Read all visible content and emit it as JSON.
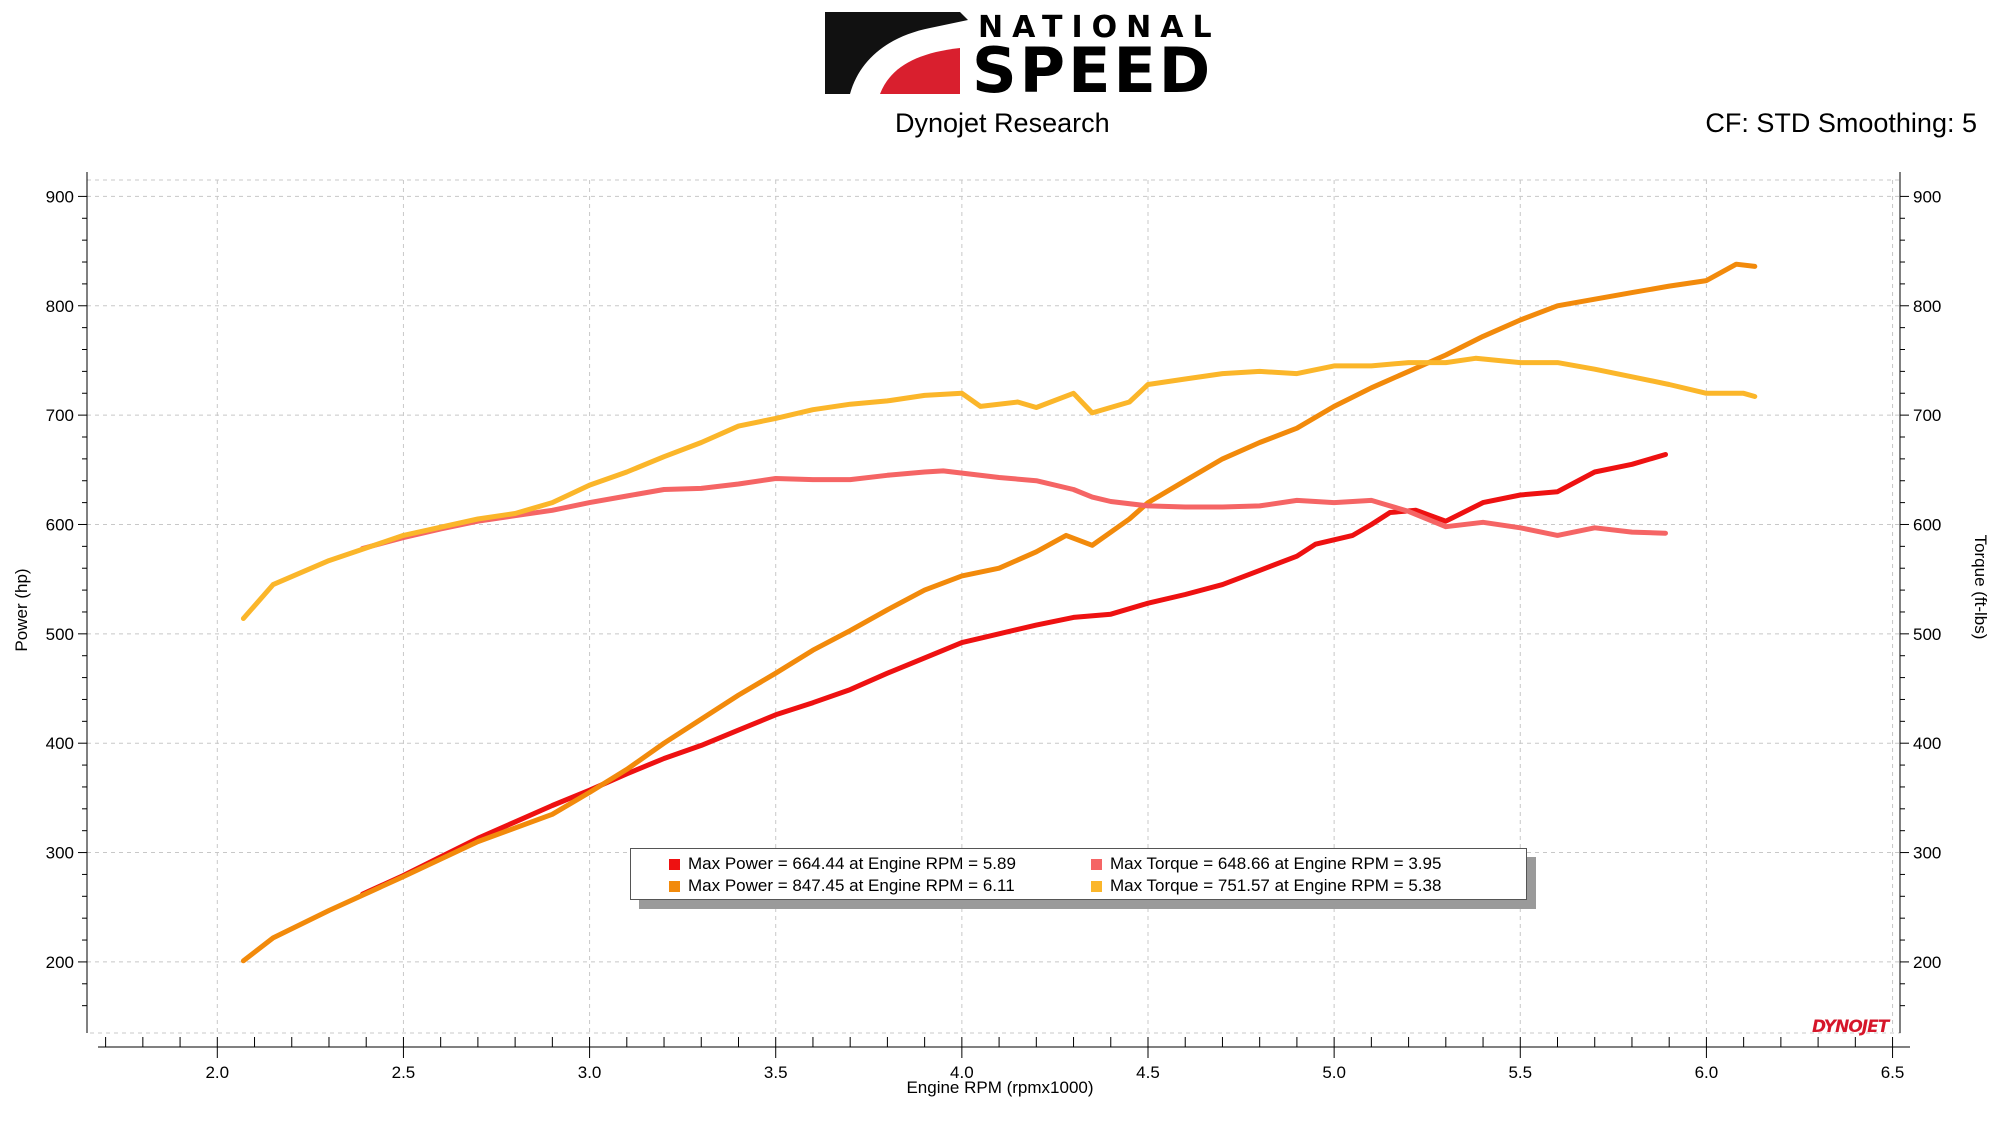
{
  "header": {
    "logo_top": "NATIONAL",
    "logo_bottom": "SPEED",
    "subtitle": "Dynojet Research",
    "cf_label": "CF: STD Smoothing: 5"
  },
  "brand_mark": "DYNOJET",
  "colors": {
    "power_run1": "#ee1111",
    "power_run2": "#f28a0b",
    "torque_run1": "#f56565",
    "torque_run2": "#fbb62a",
    "grid": "#c8c8c8",
    "logo_red": "#d91f2e"
  },
  "legend": {
    "items": [
      {
        "label": "Max Power = 664.44 at Engine RPM = 5.89",
        "color": "#ee1111"
      },
      {
        "label": "Max Torque = 648.66 at Engine RPM = 3.95",
        "color": "#f56565"
      },
      {
        "label": "Max Power = 847.45 at Engine RPM = 6.11",
        "color": "#f28a0b"
      },
      {
        "label": "Max Torque = 751.57 at Engine RPM = 5.38",
        "color": "#fbb62a"
      }
    ]
  },
  "chart_data": {
    "type": "line",
    "xlabel": "Engine RPM (rpmx1000)",
    "ylabel": "Power (hp)",
    "ylabel_right": "Torque (ft-lbs)",
    "xlim": [
      1.65,
      6.52
    ],
    "ylim": [
      135,
      915
    ],
    "x_ticks": [
      "2.0",
      "2.5",
      "3.0",
      "3.5",
      "4.0",
      "4.5",
      "5.0",
      "5.5",
      "6.0",
      "6.5"
    ],
    "y_ticks": [
      "200",
      "300",
      "400",
      "500",
      "600",
      "700",
      "800",
      "900"
    ],
    "grid": true,
    "series": [
      {
        "name": "Max Power = 664.44 at Engine RPM = 5.89",
        "axis": "left",
        "color": "#ee1111",
        "points": [
          [
            2.39,
            262
          ],
          [
            2.5,
            279
          ],
          [
            2.6,
            296
          ],
          [
            2.7,
            313
          ],
          [
            2.8,
            328
          ],
          [
            2.9,
            343
          ],
          [
            3.0,
            357
          ],
          [
            3.1,
            372
          ],
          [
            3.2,
            386
          ],
          [
            3.3,
            398
          ],
          [
            3.4,
            412
          ],
          [
            3.5,
            426
          ],
          [
            3.6,
            437
          ],
          [
            3.7,
            449
          ],
          [
            3.8,
            464
          ],
          [
            3.9,
            478
          ],
          [
            4.0,
            492
          ],
          [
            4.1,
            500
          ],
          [
            4.2,
            508
          ],
          [
            4.3,
            515
          ],
          [
            4.4,
            518
          ],
          [
            4.5,
            528
          ],
          [
            4.6,
            536
          ],
          [
            4.7,
            545
          ],
          [
            4.8,
            558
          ],
          [
            4.9,
            571
          ],
          [
            4.95,
            582
          ],
          [
            5.05,
            590
          ],
          [
            5.1,
            600
          ],
          [
            5.15,
            611
          ],
          [
            5.22,
            613
          ],
          [
            5.3,
            603
          ],
          [
            5.4,
            620
          ],
          [
            5.5,
            627
          ],
          [
            5.6,
            630
          ],
          [
            5.7,
            648
          ],
          [
            5.8,
            655
          ],
          [
            5.89,
            664
          ]
        ]
      },
      {
        "name": "Max Power = 847.45 at Engine RPM = 6.11",
        "axis": "left",
        "color": "#f28a0b",
        "points": [
          [
            2.07,
            201
          ],
          [
            2.15,
            222
          ],
          [
            2.3,
            247
          ],
          [
            2.5,
            278
          ],
          [
            2.7,
            310
          ],
          [
            2.9,
            335
          ],
          [
            3.0,
            355
          ],
          [
            3.1,
            376
          ],
          [
            3.2,
            400
          ],
          [
            3.3,
            422
          ],
          [
            3.4,
            444
          ],
          [
            3.5,
            464
          ],
          [
            3.6,
            485
          ],
          [
            3.7,
            503
          ],
          [
            3.8,
            522
          ],
          [
            3.9,
            540
          ],
          [
            4.0,
            553
          ],
          [
            4.1,
            560
          ],
          [
            4.2,
            575
          ],
          [
            4.28,
            590
          ],
          [
            4.35,
            581
          ],
          [
            4.45,
            605
          ],
          [
            4.5,
            620
          ],
          [
            4.6,
            640
          ],
          [
            4.7,
            660
          ],
          [
            4.8,
            675
          ],
          [
            4.9,
            688
          ],
          [
            5.0,
            708
          ],
          [
            5.1,
            725
          ],
          [
            5.2,
            740
          ],
          [
            5.3,
            755
          ],
          [
            5.4,
            772
          ],
          [
            5.5,
            787
          ],
          [
            5.6,
            800
          ],
          [
            5.7,
            806
          ],
          [
            5.8,
            812
          ],
          [
            5.9,
            818
          ],
          [
            6.0,
            823
          ],
          [
            6.08,
            838
          ],
          [
            6.13,
            836
          ]
        ]
      },
      {
        "name": "Max Torque = 648.66 at Engine RPM = 3.95",
        "axis": "right",
        "color": "#f56565",
        "points": [
          [
            2.39,
            578
          ],
          [
            2.5,
            588
          ],
          [
            2.6,
            596
          ],
          [
            2.7,
            603
          ],
          [
            2.8,
            608
          ],
          [
            2.9,
            613
          ],
          [
            3.0,
            620
          ],
          [
            3.1,
            626
          ],
          [
            3.2,
            632
          ],
          [
            3.3,
            633
          ],
          [
            3.4,
            637
          ],
          [
            3.5,
            642
          ],
          [
            3.6,
            641
          ],
          [
            3.7,
            641
          ],
          [
            3.8,
            645
          ],
          [
            3.9,
            648
          ],
          [
            3.95,
            649
          ],
          [
            4.1,
            643
          ],
          [
            4.2,
            640
          ],
          [
            4.3,
            632
          ],
          [
            4.35,
            625
          ],
          [
            4.4,
            621
          ],
          [
            4.5,
            617
          ],
          [
            4.6,
            616
          ],
          [
            4.7,
            616
          ],
          [
            4.8,
            617
          ],
          [
            4.9,
            622
          ],
          [
            5.0,
            620
          ],
          [
            5.1,
            622
          ],
          [
            5.2,
            612
          ],
          [
            5.3,
            598
          ],
          [
            5.4,
            602
          ],
          [
            5.5,
            597
          ],
          [
            5.6,
            590
          ],
          [
            5.7,
            597
          ],
          [
            5.8,
            593
          ],
          [
            5.89,
            592
          ]
        ]
      },
      {
        "name": "Max Torque = 751.57 at Engine RPM = 5.38",
        "axis": "right",
        "color": "#fbb62a",
        "points": [
          [
            2.07,
            514
          ],
          [
            2.15,
            545
          ],
          [
            2.3,
            567
          ],
          [
            2.5,
            590
          ],
          [
            2.7,
            605
          ],
          [
            2.8,
            610
          ],
          [
            2.9,
            620
          ],
          [
            3.0,
            636
          ],
          [
            3.1,
            648
          ],
          [
            3.2,
            662
          ],
          [
            3.3,
            675
          ],
          [
            3.4,
            690
          ],
          [
            3.5,
            697
          ],
          [
            3.6,
            705
          ],
          [
            3.7,
            710
          ],
          [
            3.8,
            713
          ],
          [
            3.9,
            718
          ],
          [
            4.0,
            720
          ],
          [
            4.05,
            708
          ],
          [
            4.15,
            712
          ],
          [
            4.2,
            707
          ],
          [
            4.3,
            720
          ],
          [
            4.35,
            702
          ],
          [
            4.45,
            712
          ],
          [
            4.5,
            728
          ],
          [
            4.6,
            733
          ],
          [
            4.7,
            738
          ],
          [
            4.8,
            740
          ],
          [
            4.9,
            738
          ],
          [
            5.0,
            745
          ],
          [
            5.1,
            745
          ],
          [
            5.2,
            748
          ],
          [
            5.3,
            748
          ],
          [
            5.38,
            752
          ],
          [
            5.5,
            748
          ],
          [
            5.6,
            748
          ],
          [
            5.7,
            742
          ],
          [
            5.8,
            735
          ],
          [
            5.9,
            728
          ],
          [
            6.0,
            720
          ],
          [
            6.1,
            720
          ],
          [
            6.13,
            717
          ]
        ]
      }
    ]
  }
}
